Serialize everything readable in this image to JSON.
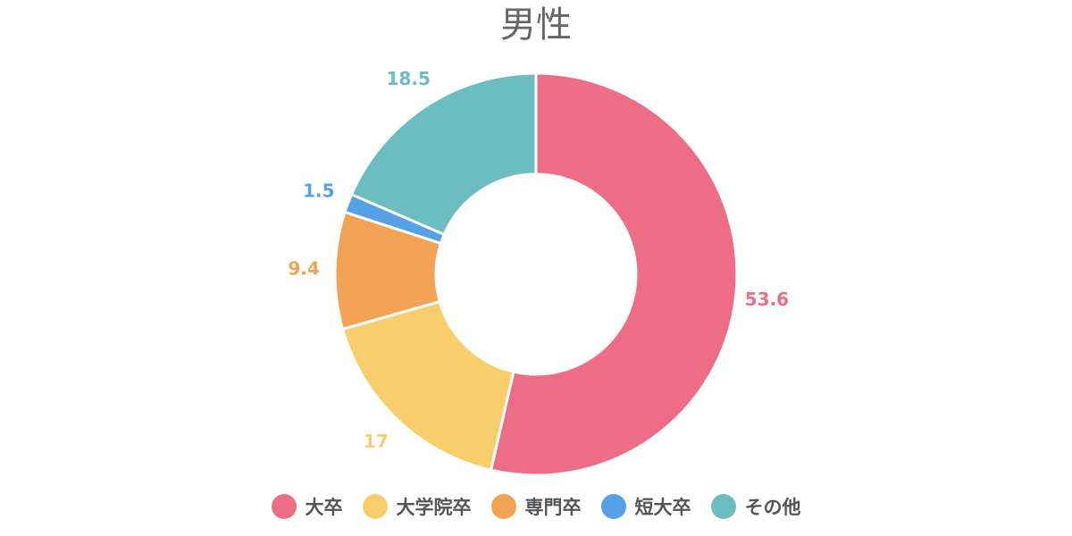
{
  "chart_data": {
    "type": "pie",
    "title": "男性",
    "donut": true,
    "legend_position": "bottom",
    "categories": [
      "大卒",
      "大学院卒",
      "専門卒",
      "短大卒",
      "その他"
    ],
    "values": [
      53.6,
      17,
      9.4,
      1.5,
      18.5
    ],
    "value_labels": [
      "53.6",
      "17",
      "9.4",
      "1.5",
      "18.5"
    ],
    "colors": [
      "#ED6D85",
      "#F7CE6B",
      "#F2A354",
      "#56A0E5",
      "#6CBDBF"
    ]
  }
}
